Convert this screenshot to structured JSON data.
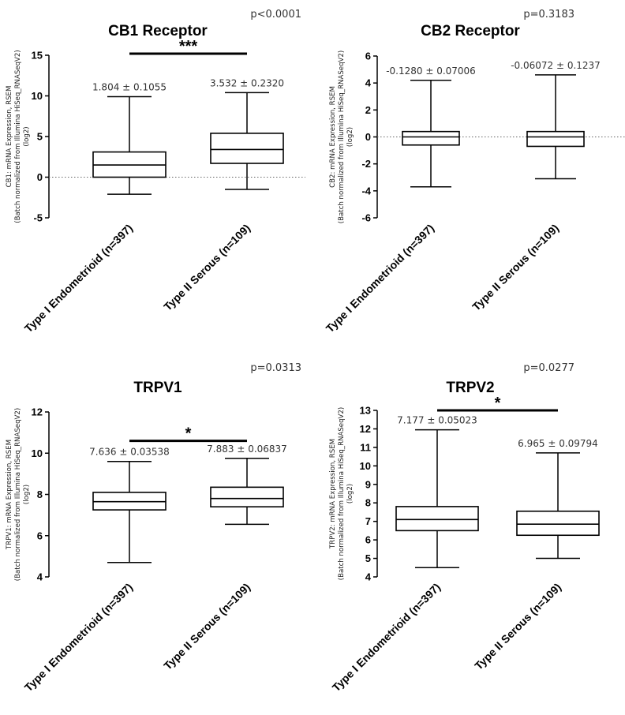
{
  "chart_data": [
    {
      "type": "box",
      "title": "CB1 Receptor",
      "p_value": "p<0.0001",
      "ylabel_lines": [
        "CB1: mRNA Expression, RSEM",
        "(Batch normalized from Illumina HiSeq_RNASeqV2)",
        "(log2)"
      ],
      "ylim": [
        -5,
        15
      ],
      "yticks": [
        "-5",
        "0",
        "5",
        "10",
        "15"
      ],
      "zero_line": true,
      "categories": [
        "Type I Endometrioid (n=397)",
        "Type II Serous (n=109)"
      ],
      "boxes": [
        {
          "min": -2.1,
          "q1": 0.0,
          "median": 1.5,
          "q3": 3.1,
          "max": 9.9,
          "annotation": "1.804 ± 0.1055"
        },
        {
          "min": -1.5,
          "q1": 1.7,
          "median": 3.4,
          "q3": 5.4,
          "max": 10.4,
          "annotation": "3.532 ± 0.2320"
        }
      ],
      "significance": {
        "label": "***",
        "level": 15.2
      }
    },
    {
      "type": "box",
      "title": "CB2  Receptor",
      "p_value": "p=0.3183",
      "ylabel_lines": [
        "CB2: mRNA Expression, RSEM",
        "(Batch normalized from Illumina HiSeq_RNASeqV2)",
        "(log2)"
      ],
      "ylim": [
        -6,
        6
      ],
      "yticks": [
        "-6",
        "-4",
        "-2",
        "0",
        "2",
        "4",
        "6"
      ],
      "zero_line": true,
      "categories": [
        "Type I Endometrioid (n=397)",
        "Type II Serous (n=109)"
      ],
      "boxes": [
        {
          "min": -3.7,
          "q1": -0.6,
          "median": 0.0,
          "q3": 0.4,
          "max": 4.2,
          "annotation": "-0.1280 ± 0.07006"
        },
        {
          "min": -3.1,
          "q1": -0.7,
          "median": 0.0,
          "q3": 0.4,
          "max": 4.6,
          "annotation": "-0.06072 ± 0.1237"
        }
      ],
      "significance": null
    },
    {
      "type": "box",
      "title": "TRPV1",
      "p_value": "p=0.0313",
      "ylabel_lines": [
        "TRPV1: mRNA Expression, RSEM",
        "(Batch normalized from Illumina HiSeq_RNASeqV2)",
        "(log2)"
      ],
      "ylim": [
        4,
        12
      ],
      "yticks": [
        "4",
        "6",
        "8",
        "10",
        "12"
      ],
      "zero_line": false,
      "categories": [
        "Type I Endometrioid (n=397)",
        "Type II Serous (n=109)"
      ],
      "boxes": [
        {
          "min": 4.7,
          "q1": 7.25,
          "median": 7.65,
          "q3": 8.1,
          "max": 9.6,
          "annotation": "7.636 ± 0.03538"
        },
        {
          "min": 6.55,
          "q1": 7.4,
          "median": 7.8,
          "q3": 8.35,
          "max": 9.75,
          "annotation": "7.883 ± 0.06837"
        }
      ],
      "significance": {
        "label": "*",
        "level": 10.6
      }
    },
    {
      "type": "box",
      "title": "TRPV2",
      "p_value": "p=0.0277",
      "ylabel_lines": [
        "TRPV2: mRNA Expression, RSEM",
        "(Batch normalized from Illumina HiSeq_RNASeqV2)",
        "(log2)"
      ],
      "ylim": [
        4,
        13
      ],
      "yticks": [
        "4",
        "5",
        "6",
        "7",
        "8",
        "9",
        "10",
        "11",
        "12",
        "13"
      ],
      "zero_line": false,
      "categories": [
        "Type I Endometrioid (n=397)",
        "Type II Serous (n=109)"
      ],
      "boxes": [
        {
          "min": 4.5,
          "q1": 6.5,
          "median": 7.1,
          "q3": 7.8,
          "max": 11.95,
          "annotation": "7.177 ± 0.05023"
        },
        {
          "min": 5.0,
          "q1": 6.25,
          "median": 6.85,
          "q3": 7.55,
          "max": 10.7,
          "annotation": "6.965 ± 0.09794"
        }
      ],
      "significance": {
        "label": "*",
        "level": 13.0
      }
    }
  ]
}
